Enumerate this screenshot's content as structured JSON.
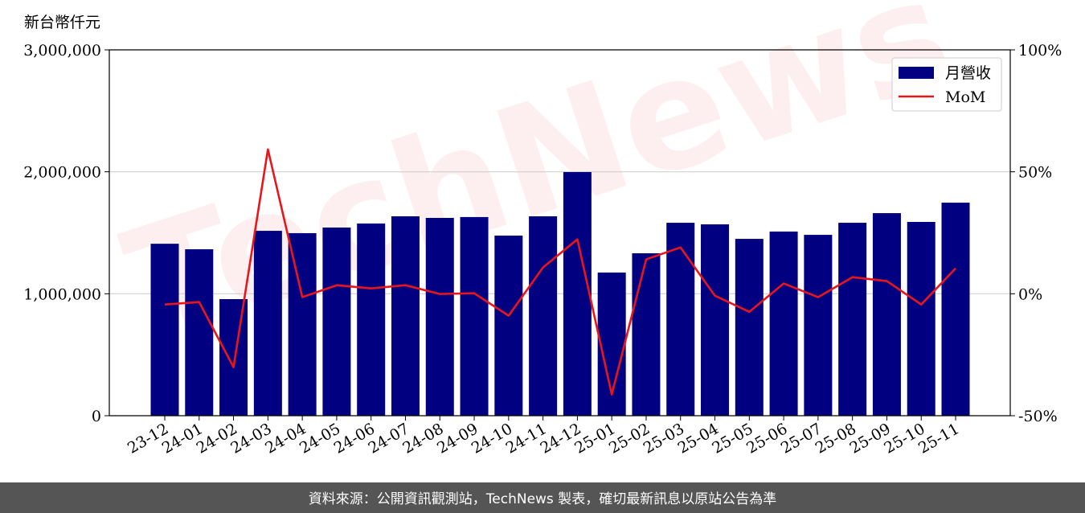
{
  "chart_data": {
    "type": "bar_line",
    "ylabel": "新台幣仟元",
    "watermark": "TechNews",
    "footer": "資料來源：公開資訊觀測站，TechNews 製表，確切最新訊息以原站公告為準",
    "categories": [
      "23-12",
      "24-01",
      "24-02",
      "24-03",
      "24-04",
      "24-05",
      "24-06",
      "24-07",
      "24-08",
      "24-09",
      "24-10",
      "24-11",
      "24-12",
      "25-01",
      "25-02",
      "25-03",
      "25-04",
      "25-05",
      "25-06",
      "25-07",
      "25-08",
      "25-09",
      "25-10",
      "25-11"
    ],
    "series": [
      {
        "name": "月營收",
        "type": "bar",
        "color": "#000080",
        "values": [
          1410000,
          1365000,
          956000,
          1516000,
          1497000,
          1543000,
          1576000,
          1635000,
          1622000,
          1629000,
          1477000,
          1635000,
          1998000,
          1174000,
          1332000,
          1582000,
          1569000,
          1450000,
          1510000,
          1483000,
          1582000,
          1661000,
          1589000,
          1747000
        ]
      },
      {
        "name": "MoM",
        "type": "line",
        "axis": "y2",
        "color": "#e8161b",
        "values": [
          -4.4,
          -3.4,
          -30.1,
          59.2,
          -1.4,
          3.5,
          2.2,
          3.5,
          -0.1,
          0.2,
          -9.0,
          10.8,
          22.3,
          -41.3,
          14.1,
          19.0,
          -0.8,
          -7.4,
          4.2,
          -1.4,
          6.8,
          5.2,
          -4.4,
          10.4
        ]
      }
    ],
    "ylim": [
      0,
      3000000
    ],
    "yticks": [
      0,
      {
        "value": 1000000,
        "label": "1,000,000"
      },
      {
        "value": 2000000,
        "label": "2,000,000"
      },
      {
        "value": 3000000,
        "label": "3,000,000"
      }
    ],
    "y2lim": [
      -50,
      100
    ],
    "y2ticks": [
      {
        "value": -50,
        "label": "-50%"
      },
      {
        "value": 0,
        "label": "0%"
      },
      {
        "value": 50,
        "label": "50%"
      },
      {
        "value": 100,
        "label": "100%"
      }
    ],
    "grid": true,
    "legend": "upper-right"
  }
}
